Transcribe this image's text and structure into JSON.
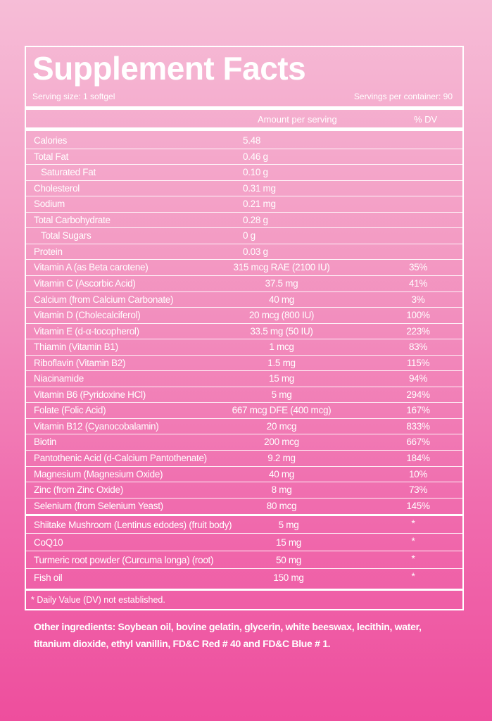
{
  "title": "Supplement Facts",
  "serving_size": "Serving size: 1 softgel",
  "servings_per_container": "Servings per container: 90",
  "header": {
    "amount": "Amount per serving",
    "dv": "% DV"
  },
  "nutrients": [
    {
      "name": "Calories",
      "amount": "5.48"
    },
    {
      "name": "Total Fat",
      "amount": "0.46 g"
    },
    {
      "name": "Saturated Fat",
      "amount": "0.10 g"
    },
    {
      "name": "Cholesterol",
      "amount": "0.31 mg"
    },
    {
      "name": "Sodium",
      "amount": "0.21 mg"
    },
    {
      "name": "Total Carbohydrate",
      "amount": "0.28 g"
    },
    {
      "name": "Total Sugars",
      "amount": "0 g"
    },
    {
      "name": "Protein",
      "amount": "0.03 g"
    }
  ],
  "vitamins": [
    {
      "name": "Vitamin A (as Beta carotene)",
      "amount": "315 mcg RAE (2100 IU)",
      "dv": "35%"
    },
    {
      "name": "Vitamin C (Ascorbic Acid)",
      "amount": "37.5 mg",
      "dv": "41%"
    },
    {
      "name": "Calcium (from Calcium Carbonate)",
      "amount": "40 mg",
      "dv": "3%"
    },
    {
      "name": "Vitamin D (Cholecalciferol)",
      "amount": "20 mcg (800 IU)",
      "dv": "100%"
    },
    {
      "name": "Vitamin E (d-α-tocopherol)",
      "amount": "33.5 mg (50 IU)",
      "dv": "223%"
    },
    {
      "name": "Thiamin (Vitamin B1)",
      "amount": "1 mcg",
      "dv": "83%"
    },
    {
      "name": "Riboflavin (Vitamin B2)",
      "amount": "1.5 mg",
      "dv": "115%"
    },
    {
      "name": "Niacinamide",
      "amount": "15 mg",
      "dv": "94%"
    },
    {
      "name": "Vitamin B6 (Pyridoxine HCl)",
      "amount": "5 mg",
      "dv": "294%"
    },
    {
      "name": "Folate (Folic Acid)",
      "amount": "667 mcg DFE (400 mcg)",
      "dv": "167%"
    },
    {
      "name": "Vitamin B12 (Cyanocobalamin)",
      "amount": "20 mcg",
      "dv": "833%"
    },
    {
      "name": "Biotin",
      "amount": "200 mcg",
      "dv": "667%"
    },
    {
      "name": "Pantothenic Acid (d-Calcium Pantothenate)",
      "amount": "9.2 mg",
      "dv": "184%"
    },
    {
      "name": "Magnesium (Magnesium Oxide)",
      "amount": "40 mg",
      "dv": "10%"
    },
    {
      "name": "Zinc (from Zinc Oxide)",
      "amount": "8 mg",
      "dv": "73%"
    },
    {
      "name": "Selenium (from Selenium Yeast)",
      "amount": "80 mcg",
      "dv": "145%"
    }
  ],
  "others": [
    {
      "name": "Shiitake Mushroom (Lentinus edodes) (fruit body)",
      "amount": "5 mg",
      "dv": "*"
    },
    {
      "name": "CoQ10",
      "amount": "15 mg",
      "dv": "*"
    },
    {
      "name": "Turmeric root powder (Curcuma longa) (root)",
      "amount": "50 mg",
      "dv": "*"
    },
    {
      "name": "Fish oil",
      "amount": "150 mg",
      "dv": "*"
    }
  ],
  "footnote": "* Daily Value (DV) not established.",
  "other_ingredients": "Other ingredients: Soybean oil, bovine gelatin, glycerin, white beeswax, lecithin, water, titanium dioxide, ethyl vanillin, FD&C Red # 40 and FD&C Blue # 1."
}
